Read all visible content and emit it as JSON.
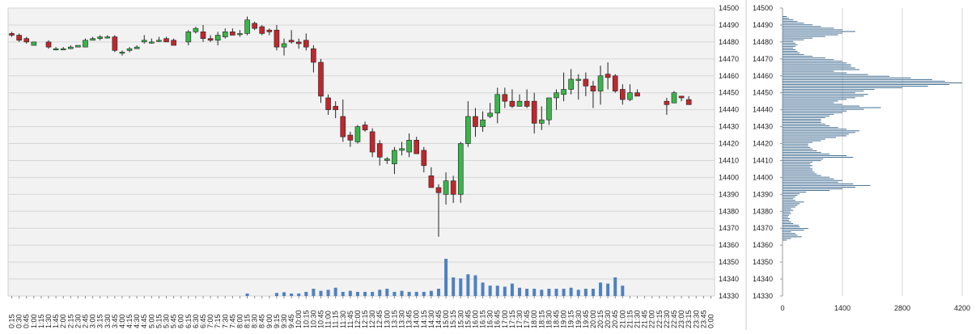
{
  "chart_data": [
    {
      "type": "candlestick",
      "y_ticks": [
        14330,
        14340,
        14350,
        14360,
        14370,
        14380,
        14390,
        14400,
        14410,
        14420,
        14430,
        14440,
        14450,
        14460,
        14470,
        14480,
        14490,
        14500
      ],
      "ylim": [
        14330,
        14500
      ],
      "grid": true,
      "x_labels": [
        "0:15",
        "0:30",
        "0:45",
        "1:00",
        "1:15",
        "1:30",
        "1:45",
        "2:00",
        "2:15",
        "2:30",
        "2:45",
        "3:00",
        "3:15",
        "3:30",
        "3:45",
        "4:00",
        "4:15",
        "4:30",
        "4:45",
        "5:00",
        "5:15",
        "5:30",
        "5:45",
        "6:00",
        "6:15",
        "6:30",
        "6:45",
        "7:00",
        "7:15",
        "7:30",
        "7:45",
        "8:00",
        "8:15",
        "8:30",
        "8:45",
        "9:00",
        "9:15",
        "9:30",
        "9:45",
        "10:00",
        "10:15",
        "10:30",
        "10:45",
        "11:00",
        "11:15",
        "11:30",
        "11:45",
        "12:00",
        "12:15",
        "12:30",
        "12:45",
        "13:00",
        "13:15",
        "13:30",
        "13:45",
        "14:00",
        "14:15",
        "14:30",
        "14:45",
        "15:00",
        "15:15",
        "15:30",
        "15:45",
        "16:00",
        "16:15",
        "16:30",
        "16:45",
        "17:00",
        "17:15",
        "17:30",
        "17:45",
        "18:00",
        "18:15",
        "18:30",
        "18:45",
        "19:00",
        "19:15",
        "19:30",
        "19:45",
        "20:00",
        "20:15",
        "20:30",
        "20:45",
        "21:00",
        "21:15",
        "21:30",
        "21:45",
        "22:00",
        "22:15",
        "22:30",
        "22:45",
        "23:00",
        "23:15",
        "23:30",
        "23:45",
        "0:00"
      ],
      "candles": [
        [
          0,
          14485,
          14486,
          14483,
          14484
        ],
        [
          1,
          14484,
          14485,
          14480,
          14481
        ],
        [
          2,
          14482,
          14483,
          14479,
          14480
        ],
        [
          3,
          14478,
          14480,
          14478,
          14480
        ],
        [
          5,
          14480,
          14481,
          14476,
          14477
        ],
        [
          6,
          14476,
          14477,
          14475,
          14476
        ],
        [
          7,
          14476,
          14477,
          14476,
          14476
        ],
        [
          8,
          14476,
          14478,
          14476,
          14477
        ],
        [
          9,
          14477,
          14478,
          14477,
          14478
        ],
        [
          10,
          14477,
          14482,
          14477,
          14481
        ],
        [
          11,
          14481,
          14483,
          14481,
          14482
        ],
        [
          12,
          14482,
          14484,
          14481,
          14483
        ],
        [
          13,
          14483,
          14484,
          14482,
          14483
        ],
        [
          14,
          14483,
          14484,
          14474,
          14475
        ],
        [
          15,
          14474,
          14475,
          14472,
          14474
        ],
        [
          16,
          14475,
          14477,
          14474,
          14476
        ],
        [
          17,
          14476,
          14478,
          14476,
          14477
        ],
        [
          18,
          14480,
          14484,
          14479,
          14481
        ],
        [
          19,
          14480,
          14482,
          14479,
          14480
        ],
        [
          20,
          14481,
          14483,
          14480,
          14481
        ],
        [
          21,
          14482,
          14483,
          14480,
          14480
        ],
        [
          22,
          14481,
          14482,
          14478,
          14478
        ],
        [
          24,
          14480,
          14487,
          14478,
          14486
        ],
        [
          25,
          14486,
          14489,
          14485,
          14488
        ],
        [
          26,
          14486,
          14490,
          14480,
          14482
        ],
        [
          27,
          14482,
          14484,
          14480,
          14481
        ],
        [
          28,
          14481,
          14486,
          14478,
          14484
        ],
        [
          29,
          14483,
          14488,
          14482,
          14486
        ],
        [
          30,
          14486,
          14488,
          14484,
          14484
        ],
        [
          31,
          14485,
          14487,
          14483,
          14485
        ],
        [
          32,
          14485,
          14495,
          14484,
          14493
        ],
        [
          33,
          14491,
          14492,
          14487,
          14488
        ],
        [
          34,
          14489,
          14490,
          14484,
          14485
        ],
        [
          35,
          14487,
          14488,
          14484,
          14486
        ],
        [
          36,
          14487,
          14490,
          14475,
          14477
        ],
        [
          37,
          14477,
          14482,
          14472,
          14479
        ],
        [
          38,
          14481,
          14487,
          14479,
          14480
        ],
        [
          39,
          14480,
          14482,
          14476,
          14479
        ],
        [
          40,
          14481,
          14485,
          14475,
          14477
        ],
        [
          41,
          14476,
          14478,
          14462,
          14468
        ],
        [
          42,
          14468,
          14470,
          14444,
          14448
        ],
        [
          43,
          14447,
          14449,
          14437,
          14440
        ],
        [
          44,
          14442,
          14445,
          14435,
          14440
        ],
        [
          45,
          14436,
          14446,
          14421,
          14424
        ],
        [
          46,
          14425,
          14427,
          14418,
          14422
        ],
        [
          47,
          14421,
          14431,
          14420,
          14430
        ],
        [
          48,
          14431,
          14433,
          14427,
          14428
        ],
        [
          49,
          14427,
          14429,
          14412,
          14415
        ],
        [
          50,
          14420,
          14422,
          14407,
          14412
        ],
        [
          51,
          14410,
          14412,
          14408,
          14411
        ],
        [
          52,
          14408,
          14418,
          14402,
          14416
        ],
        [
          53,
          14416,
          14421,
          14413,
          14417
        ],
        [
          54,
          14415,
          14426,
          14412,
          14422
        ],
        [
          55,
          14422,
          14424,
          14414,
          14414
        ],
        [
          56,
          14416,
          14418,
          14403,
          14407
        ],
        [
          57,
          14401,
          14406,
          14394,
          14394
        ],
        [
          58,
          14394,
          14396,
          14365,
          14391
        ],
        [
          59,
          14390,
          14403,
          14384,
          14398
        ],
        [
          60,
          14398,
          14401,
          14385,
          14390
        ],
        [
          61,
          14390,
          14421,
          14385,
          14420
        ],
        [
          62,
          14420,
          14445,
          14418,
          14436
        ],
        [
          63,
          14436,
          14441,
          14424,
          14430
        ],
        [
          64,
          14430,
          14439,
          14427,
          14434
        ],
        [
          65,
          14436,
          14444,
          14435,
          14438
        ],
        [
          66,
          14438,
          14453,
          14432,
          14449
        ],
        [
          67,
          14449,
          14453,
          14441,
          14445
        ],
        [
          68,
          14445,
          14452,
          14441,
          14442
        ],
        [
          69,
          14442,
          14449,
          14442,
          14445
        ],
        [
          70,
          14445,
          14452,
          14441,
          14442
        ],
        [
          71,
          14445,
          14450,
          14426,
          14432
        ],
        [
          72,
          14432,
          14442,
          14428,
          14434
        ],
        [
          73,
          14434,
          14447,
          14431,
          14447
        ],
        [
          74,
          14447,
          14452,
          14440,
          14450
        ],
        [
          75,
          14449,
          14462,
          14445,
          14452
        ],
        [
          76,
          14452,
          14464,
          14449,
          14458
        ],
        [
          77,
          14458,
          14461,
          14446,
          14458
        ],
        [
          78,
          14458,
          14462,
          14448,
          14454
        ],
        [
          79,
          14454,
          14457,
          14441,
          14451
        ],
        [
          80,
          14451,
          14466,
          14443,
          14460
        ],
        [
          81,
          14461,
          14468,
          14452,
          14459
        ],
        [
          82,
          14460,
          14461,
          14450,
          14451
        ],
        [
          83,
          14452,
          14455,
          14443,
          14446
        ],
        [
          84,
          14446,
          14455,
          14445,
          14450
        ],
        [
          85,
          14450,
          14452,
          14448,
          14448
        ],
        [
          89,
          14445,
          14447,
          14437,
          14443
        ],
        [
          90,
          14444,
          14451,
          14444,
          14450
        ],
        [
          91,
          14448,
          14448,
          14445,
          14447
        ],
        [
          92,
          14446,
          14448,
          14443,
          14443
        ]
      ],
      "volume": [
        0,
        0,
        0,
        0,
        0,
        0,
        0,
        0,
        0,
        0,
        0,
        0,
        0,
        0,
        0,
        0,
        0,
        0,
        0,
        0,
        0,
        0,
        0,
        0,
        0,
        0,
        0,
        0,
        0,
        0,
        0,
        0,
        0.12,
        0,
        0,
        0,
        0.15,
        0.18,
        0.12,
        0.12,
        0.2,
        0.35,
        0.25,
        0.3,
        0.4,
        0.2,
        0.25,
        0.2,
        0.2,
        0.2,
        0.3,
        0.35,
        0.2,
        0.25,
        0.2,
        0.2,
        0.2,
        0.25,
        0.35,
        1.8,
        0.9,
        0.85,
        1.05,
        1.0,
        0.65,
        0.5,
        0.5,
        0.45,
        0.6,
        0.4,
        0.35,
        0.35,
        0.3,
        0.35,
        0.35,
        0.35,
        0.4,
        0.3,
        0.35,
        0.35,
        0.65,
        0.6,
        0.9,
        0.5,
        0,
        0,
        0,
        0,
        0,
        0,
        0,
        0,
        0,
        0,
        0,
        0
      ]
    },
    {
      "type": "bar",
      "orientation": "horizontal",
      "x_ticks": [
        0,
        1400,
        2800,
        4200
      ],
      "xlim": [
        0,
        4200
      ],
      "y_ticks": [
        14330,
        14340,
        14350,
        14360,
        14370,
        14380,
        14390,
        14400,
        14410,
        14420,
        14430,
        14440,
        14450,
        14460,
        14470,
        14480,
        14490,
        14500
      ],
      "ylim": [
        14330,
        14500
      ],
      "grid": true,
      "levels_from": 14363,
      "levels_to": 14495,
      "values": [
        100,
        200,
        450,
        350,
        300,
        200,
        500,
        600,
        400,
        380,
        250,
        200,
        150,
        170,
        130,
        150,
        200,
        180,
        250,
        200,
        300,
        350,
        400,
        500,
        300,
        250,
        300,
        350,
        400,
        550,
        1100,
        1400,
        1700,
        2050,
        1650,
        1300,
        1400,
        1200,
        1100,
        900,
        800,
        750,
        700,
        700,
        650,
        700,
        650,
        700,
        900,
        950,
        1650,
        1500,
        1100,
        900,
        800,
        700,
        650,
        600,
        600,
        700,
        900,
        1000,
        1250,
        1500,
        1550,
        1700,
        1800,
        1500,
        1300,
        1100,
        1000,
        900,
        900,
        900,
        1000,
        1100,
        1200,
        1400,
        1500,
        1900,
        2300,
        1800,
        1400,
        1200,
        1300,
        1500,
        1700,
        1900,
        2000,
        1700,
        1900,
        2150,
        2800,
        3400,
        3900,
        4200,
        3800,
        3500,
        3000,
        2500,
        2000,
        1500,
        1200,
        1800,
        1700,
        1600,
        1600,
        1500,
        1400,
        1200,
        1000,
        700,
        500,
        400,
        350,
        300,
        250,
        300,
        350,
        300,
        250,
        500,
        700,
        1000,
        1300,
        1400,
        1700,
        1400,
        1200,
        900,
        700,
        500,
        350,
        250,
        150,
        100
      ]
    }
  ]
}
